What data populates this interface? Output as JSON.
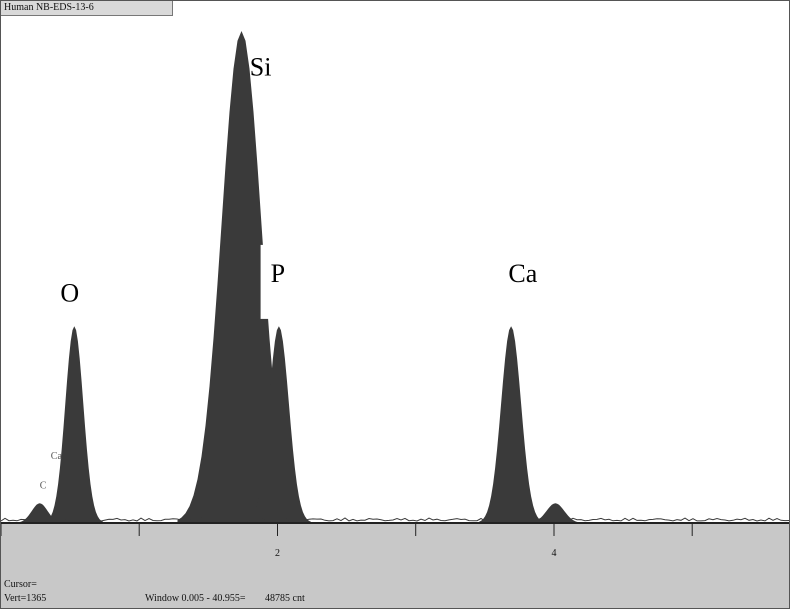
{
  "window": {
    "title": "Human NB-EDS-13-6"
  },
  "status": {
    "cursor_label": "Cursor=",
    "vert_label": "Vert=1365",
    "window_label": "Window 0.005 - 40.955=",
    "count_label": "48785 cnt"
  },
  "colors": {
    "peak_fill": "#3a3a3a",
    "axis": "#222222",
    "status_bg": "#c8c8c8",
    "label_box": "#ffffff"
  },
  "chart_data": {
    "type": "area",
    "title": "",
    "xlabel": "",
    "ylabel": "",
    "xlim": [
      0.0,
      5.7
    ],
    "ylim": [
      0,
      100
    ],
    "x_ticks": [
      2,
      4
    ],
    "grid": false,
    "peaks": [
      {
        "element": "C",
        "energy": 0.28,
        "height": 4
      },
      {
        "element": "O",
        "energy": 0.53,
        "height": 40
      },
      {
        "element": "Si",
        "energy": 1.74,
        "height": 100
      },
      {
        "element": "P",
        "energy": 2.01,
        "height": 40
      },
      {
        "element": "Ca",
        "energy": 3.69,
        "height": 40
      },
      {
        "element": "",
        "energy": 4.01,
        "height": 4
      }
    ],
    "annotations": [
      {
        "text": "Si",
        "energy": 1.8,
        "height": 91
      },
      {
        "text": "O",
        "energy": 0.43,
        "height": 45
      },
      {
        "text": "P",
        "energy": 1.95,
        "height": 49
      },
      {
        "text": "Ca",
        "energy": 3.67,
        "height": 49
      },
      {
        "text": "Ca",
        "energy": 0.36,
        "height": 13
      },
      {
        "text": "C",
        "energy": 0.28,
        "height": 7
      }
    ]
  }
}
